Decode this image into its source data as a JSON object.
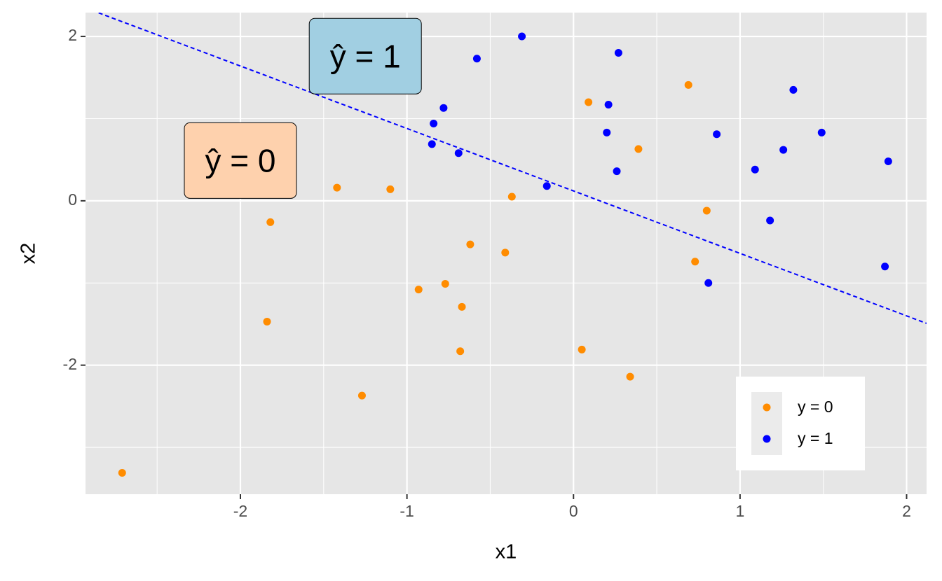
{
  "chart_data": {
    "type": "scatter",
    "xlabel": "x1",
    "ylabel": "x2",
    "xlim": [
      -2.93,
      2.12
    ],
    "ylim": [
      -3.57,
      2.29
    ],
    "xticks": [
      -2,
      -1,
      0,
      1,
      2
    ],
    "yticks": [
      -2,
      0,
      2
    ],
    "x_minor_grid": [
      -2.5,
      -1.5,
      -0.5,
      0.5,
      1.5
    ],
    "y_minor_grid": [
      -3,
      -1,
      1
    ],
    "grid": true,
    "legend": "inside-bottom-right",
    "series": [
      {
        "name": "y = 0",
        "color": "#ff8c00",
        "x": [
          -2.71,
          -1.84,
          -1.82,
          -1.42,
          -1.1,
          -1.27,
          -0.93,
          -0.77,
          -0.67,
          -0.68,
          -0.62,
          -0.41,
          -0.37,
          0.09,
          0.05,
          0.34,
          0.39,
          0.69,
          0.8,
          0.73
        ],
        "values": [
          -3.31,
          -1.47,
          -0.26,
          0.16,
          0.14,
          -2.37,
          -1.08,
          -1.01,
          -1.29,
          -1.83,
          -0.53,
          -0.63,
          0.05,
          1.2,
          -1.81,
          -2.14,
          0.63,
          1.41,
          -0.12,
          -0.74
        ]
      },
      {
        "name": "y = 1",
        "color": "#0000ff",
        "x": [
          -0.31,
          -0.58,
          -0.78,
          -0.84,
          -0.85,
          -0.69,
          -0.16,
          0.27,
          0.21,
          0.2,
          0.26,
          0.86,
          0.81,
          1.32,
          1.49,
          1.26,
          1.09,
          1.18,
          1.89,
          1.87
        ],
        "values": [
          2.0,
          1.73,
          1.13,
          0.94,
          0.69,
          0.58,
          0.18,
          1.8,
          1.17,
          0.83,
          0.36,
          0.81,
          -1.0,
          1.35,
          0.83,
          0.62,
          0.38,
          -0.24,
          0.48,
          -0.8
        ]
      }
    ],
    "boundary": {
      "intercept": 0.12,
      "slope": -0.76,
      "color": "#0000ff"
    },
    "annotations": [
      {
        "text": "ŷ = 1",
        "x": -1.25,
        "y": 1.76,
        "fill": "#a1cfe2"
      },
      {
        "text": "ŷ = 0",
        "x": -2.0,
        "y": 0.49,
        "fill": "#fed1ad"
      }
    ]
  }
}
